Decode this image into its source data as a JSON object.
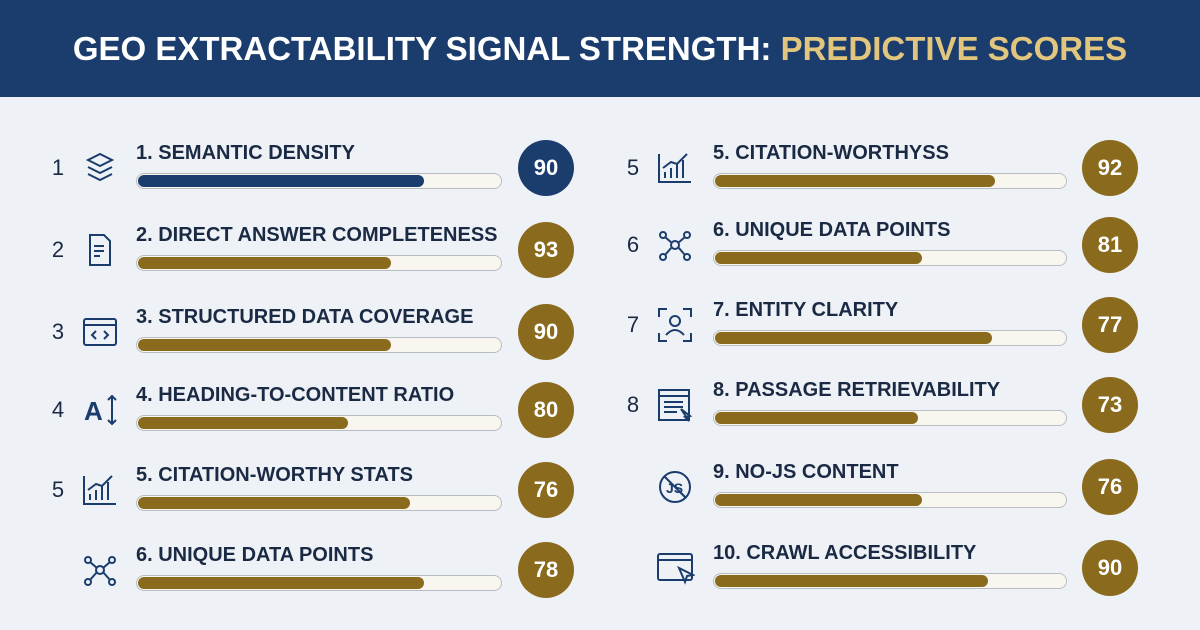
{
  "header": {
    "title": "GEO EXTRACTABILITY SIGNAL STRENGTH: ",
    "title_highlight": "PREDICTIVE SCORES"
  },
  "columns": [
    {
      "items": [
        {
          "index": "1",
          "label": "1. SEMANTIC DENSITY",
          "score": "90",
          "bar_level": 79,
          "color": "#1b3d6e"
        },
        {
          "index": "2",
          "label": "2. DIRECT ANSWER COMPLETENESS",
          "score": "93",
          "bar_level": 70,
          "color": "#8a6a1c"
        },
        {
          "index": "3",
          "label": "3. STRUCTURED DATA COVERAGE",
          "score": "90",
          "bar_level": 70,
          "color": "#8a6a1c"
        },
        {
          "index": "4",
          "label": "4. HEADING-TO-CONTENT RATIO",
          "score": "80",
          "bar_level": 58,
          "color": "#8a6a1c"
        },
        {
          "index": "5",
          "label": "5. CITATION-WORTHY STATS",
          "score": "76",
          "bar_level": 75,
          "color": "#8a6a1c"
        },
        {
          "index": null,
          "label": "6. UNIQUE DATA POINTS",
          "score": "78",
          "bar_level": 79,
          "color": "#8a6a1c"
        }
      ]
    },
    {
      "items": [
        {
          "index": "5",
          "label": "5. CITATION-WORTHYSS",
          "score": "92",
          "bar_level": 80,
          "color": "#8a6a1c"
        },
        {
          "index": "6",
          "label": "6. UNIQUE DATA POINTS",
          "score": "81",
          "bar_level": 59,
          "color": "#8a6a1c"
        },
        {
          "index": "7",
          "label": "7. ENTITY CLARITY",
          "score": "77",
          "bar_level": 79,
          "color": "#8a6a1c"
        },
        {
          "index": "8",
          "label": "8. PASSAGE RETRIEVABILITY",
          "score": "73",
          "bar_level": 58,
          "color": "#8a6a1c"
        },
        {
          "index": null,
          "label": "9. NO-JS CONTENT",
          "score": "76",
          "bar_level": 59,
          "color": "#8a6a1c"
        },
        {
          "index": null,
          "label": "10. CRAWL ACCESSIBILITY",
          "score": "90",
          "bar_level": 78,
          "color": "#8a6a1c"
        }
      ]
    }
  ]
}
